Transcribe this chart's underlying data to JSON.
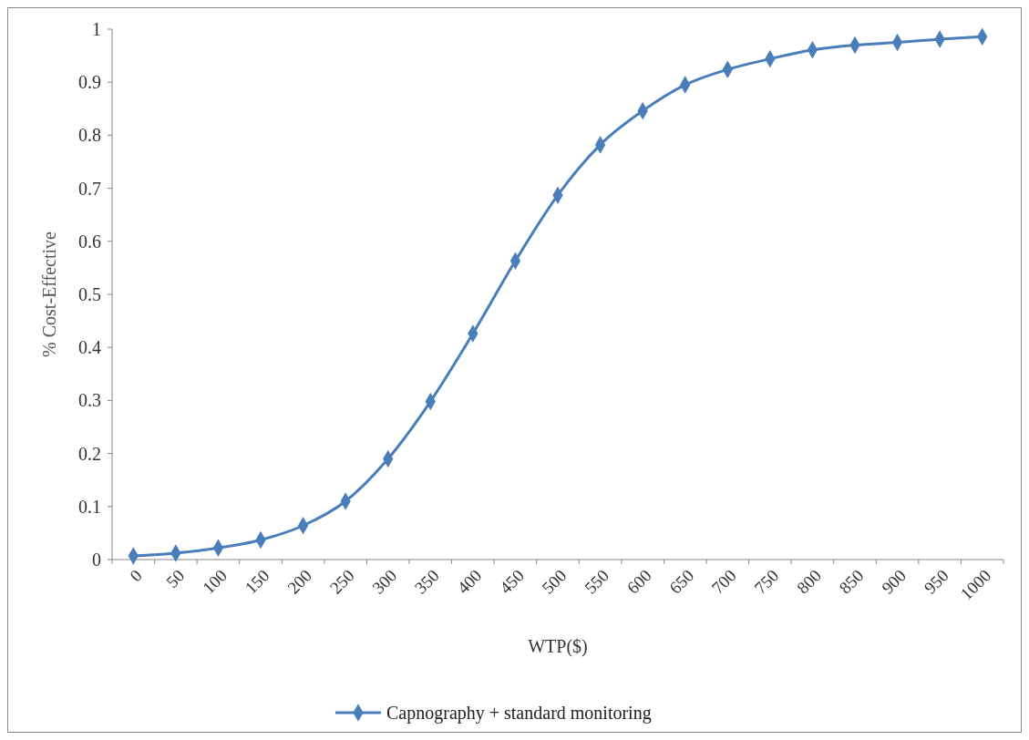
{
  "chart_data": {
    "type": "line",
    "xlabel": "WTP($)",
    "ylabel": "% Cost-Effective",
    "categories": [
      "0",
      "50",
      "100",
      "150",
      "200",
      "250",
      "300",
      "350",
      "400",
      "450",
      "500",
      "550",
      "600",
      "650",
      "700",
      "750",
      "800",
      "850",
      "900",
      "950",
      "1000"
    ],
    "series": [
      {
        "name": "Capnography + standard monitoring",
        "color": "#4a7ebb",
        "values": [
          0.007,
          0.012,
          0.022,
          0.037,
          0.064,
          0.11,
          0.19,
          0.298,
          0.426,
          0.563,
          0.687,
          0.782,
          0.846,
          0.895,
          0.924,
          0.944,
          0.961,
          0.97,
          0.975,
          0.981,
          0.986
        ]
      }
    ],
    "ylim": [
      0,
      1
    ],
    "yticks": [
      0,
      0.1,
      0.2,
      0.3,
      0.4,
      0.5,
      0.6,
      0.7,
      0.8,
      0.9,
      1
    ],
    "grid": false,
    "legend": "bottom",
    "marker": "diamond",
    "line_style": "solid"
  }
}
